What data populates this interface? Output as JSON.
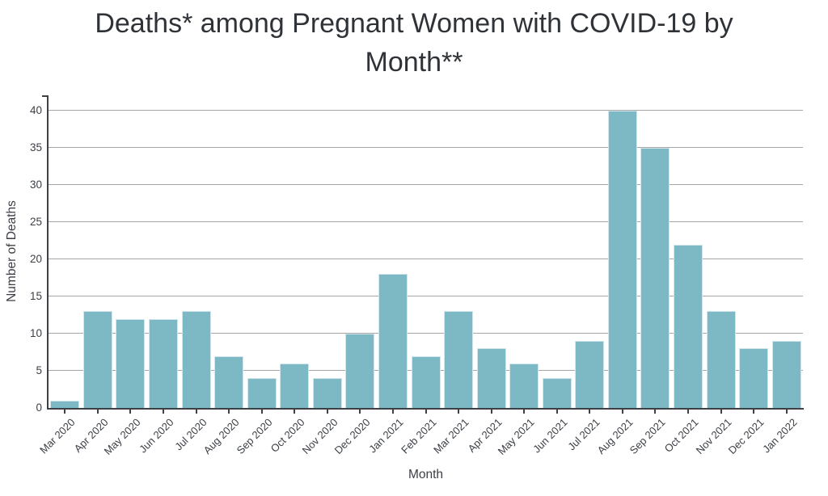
{
  "title_lines": [
    "Deaths* among Pregnant Women with COVID-19 by",
    "Month**"
  ],
  "chart_data": {
    "type": "bar",
    "title": "Deaths* among Pregnant Women with COVID-19 by Month**",
    "xlabel": "Month",
    "ylabel": "Number of Deaths",
    "categories": [
      "Mar 2020",
      "Apr 2020",
      "May 2020",
      "Jun 2020",
      "Jul 2020",
      "Aug 2020",
      "Sep 2020",
      "Oct 2020",
      "Nov 2020",
      "Dec 2020",
      "Jan 2021",
      "Feb 2021",
      "Mar 2021",
      "Apr 2021",
      "May 2021",
      "Jun 2021",
      "Jul 2021",
      "Aug 2021",
      "Sep 2021",
      "Oct 2021",
      "Nov 2021",
      "Dec 2021",
      "Jan 2022"
    ],
    "values": [
      1,
      13,
      12,
      12,
      13,
      7,
      4,
      6,
      4,
      10,
      18,
      7,
      13,
      8,
      6,
      4,
      9,
      40,
      35,
      22,
      13,
      8,
      9
    ],
    "ylim": [
      0,
      40
    ],
    "yticks": [
      0,
      5,
      10,
      15,
      20,
      25,
      30,
      35,
      40
    ],
    "grid": true,
    "legend_position": "none",
    "colors": {
      "bar_fill": "#7CB9C5",
      "bar_edge": "#D3E6EC",
      "gridline": "#A6A6A6",
      "axis": "#3D4145",
      "text": "#3B3F45",
      "title": "#2F3338"
    }
  }
}
